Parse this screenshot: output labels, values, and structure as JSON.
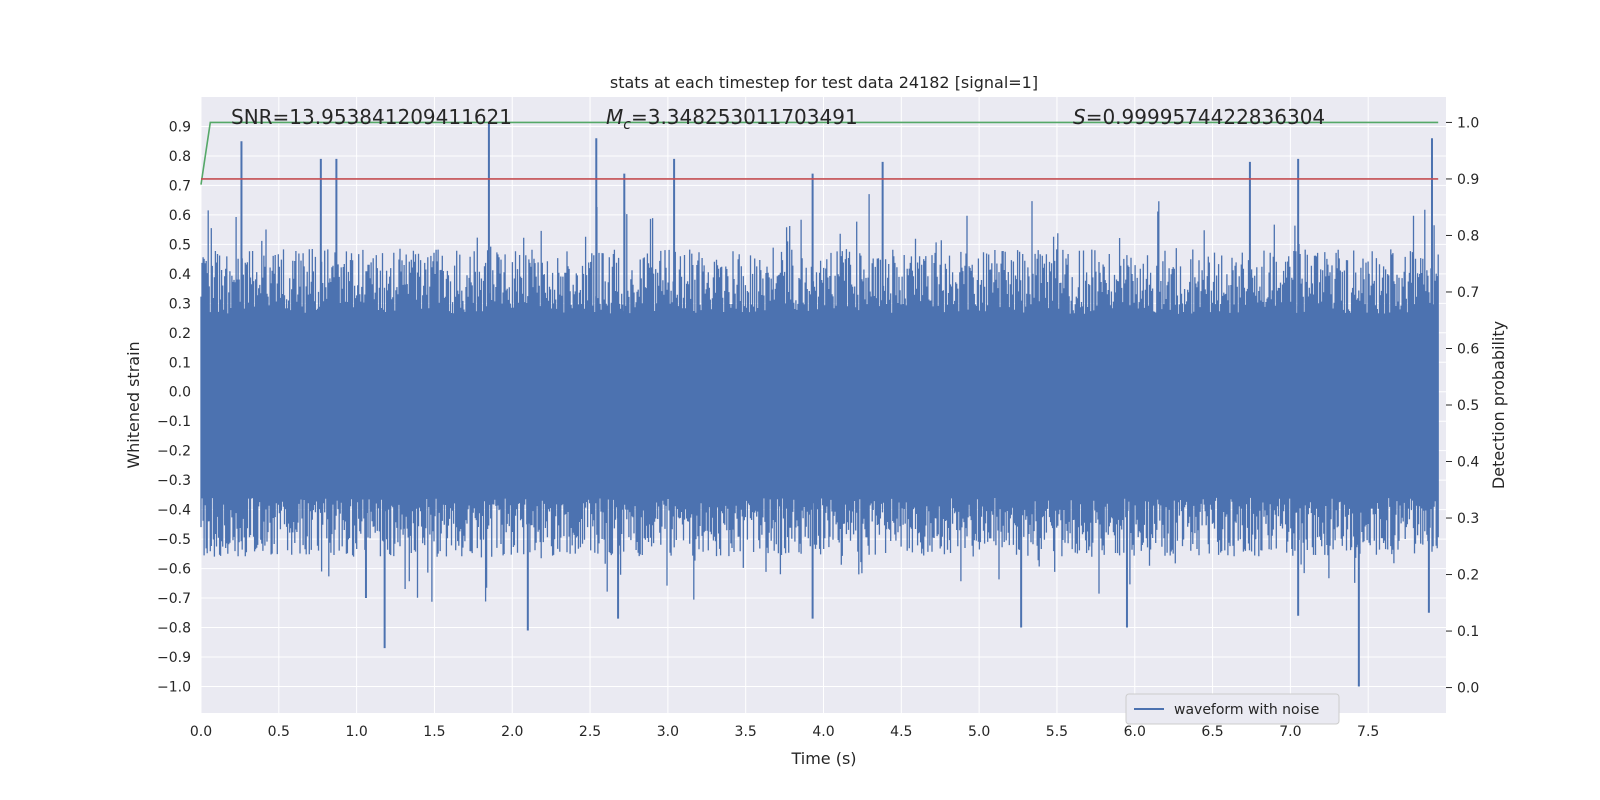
{
  "chart_data": {
    "type": "line",
    "title": "stats at each timestep for test data 24182 [signal=1]",
    "xlabel": "Time (s)",
    "ylabel": "Whitened strain",
    "y2label": "Detection probability",
    "xlim": [
      0.0,
      8.0
    ],
    "ylim": [
      -1.09,
      1.0
    ],
    "y2lim": [
      -0.045,
      1.045
    ],
    "xticks": [
      "0.0",
      "0.5",
      "1.0",
      "1.5",
      "2.0",
      "2.5",
      "3.0",
      "3.5",
      "4.0",
      "4.5",
      "5.0",
      "5.5",
      "6.0",
      "6.5",
      "7.0",
      "7.5"
    ],
    "yticks": [
      "0.9",
      "0.8",
      "0.7",
      "0.6",
      "0.5",
      "0.4",
      "0.3",
      "0.2",
      "0.1",
      "0.0",
      "−0.1",
      "−0.2",
      "−0.3",
      "−0.4",
      "−0.5",
      "−0.6",
      "−0.7",
      "−0.8",
      "−0.9",
      "−1.0"
    ],
    "y2ticks": [
      "1.0",
      "0.9",
      "0.8",
      "0.7",
      "0.6",
      "0.5",
      "0.4",
      "0.3",
      "0.2",
      "0.1",
      "0.0"
    ],
    "grid": true,
    "legend_position": "lower right",
    "annotations": {
      "snr": "SNR=13.953841209411621",
      "mc_symbol": "M",
      "mc_sub": "c",
      "mc_value": "=3.348253011703491",
      "s_symbol": "S",
      "s_value": "=0.9999574422836304"
    },
    "series": [
      {
        "name": "waveform with noise",
        "axis": "left",
        "color": "#4c72b0",
        "band": {
          "upper_typical": 0.33,
          "lower_typical": -0.42
        },
        "peaks": [
          {
            "x": 0.26,
            "y": 0.85
          },
          {
            "x": 0.77,
            "y": 0.79
          },
          {
            "x": 0.87,
            "y": 0.79
          },
          {
            "x": 1.85,
            "y": 0.91
          },
          {
            "x": 2.54,
            "y": 0.86
          },
          {
            "x": 2.72,
            "y": 0.74
          },
          {
            "x": 3.04,
            "y": 0.79
          },
          {
            "x": 3.93,
            "y": 0.74
          },
          {
            "x": 4.38,
            "y": 0.78
          },
          {
            "x": 6.74,
            "y": 0.78
          },
          {
            "x": 7.05,
            "y": 0.79
          },
          {
            "x": 7.91,
            "y": 0.86
          }
        ],
        "troughs": [
          {
            "x": 1.18,
            "y": -0.87
          },
          {
            "x": 1.06,
            "y": -0.7
          },
          {
            "x": 2.1,
            "y": -0.81
          },
          {
            "x": 2.68,
            "y": -0.77
          },
          {
            "x": 3.93,
            "y": -0.77
          },
          {
            "x": 5.27,
            "y": -0.8
          },
          {
            "x": 5.95,
            "y": -0.8
          },
          {
            "x": 7.05,
            "y": -0.76
          },
          {
            "x": 7.44,
            "y": -1.0
          },
          {
            "x": 7.89,
            "y": -0.75
          }
        ]
      },
      {
        "name": "",
        "axis": "right",
        "color": "#55a868",
        "points": [
          [
            0.0,
            0.89
          ],
          [
            0.06,
            1.0
          ],
          [
            7.95,
            1.0
          ]
        ]
      },
      {
        "name": "",
        "axis": "right",
        "color": "#c44e52",
        "points": [
          [
            0.0,
            0.9
          ],
          [
            7.95,
            0.9
          ]
        ]
      }
    ]
  }
}
